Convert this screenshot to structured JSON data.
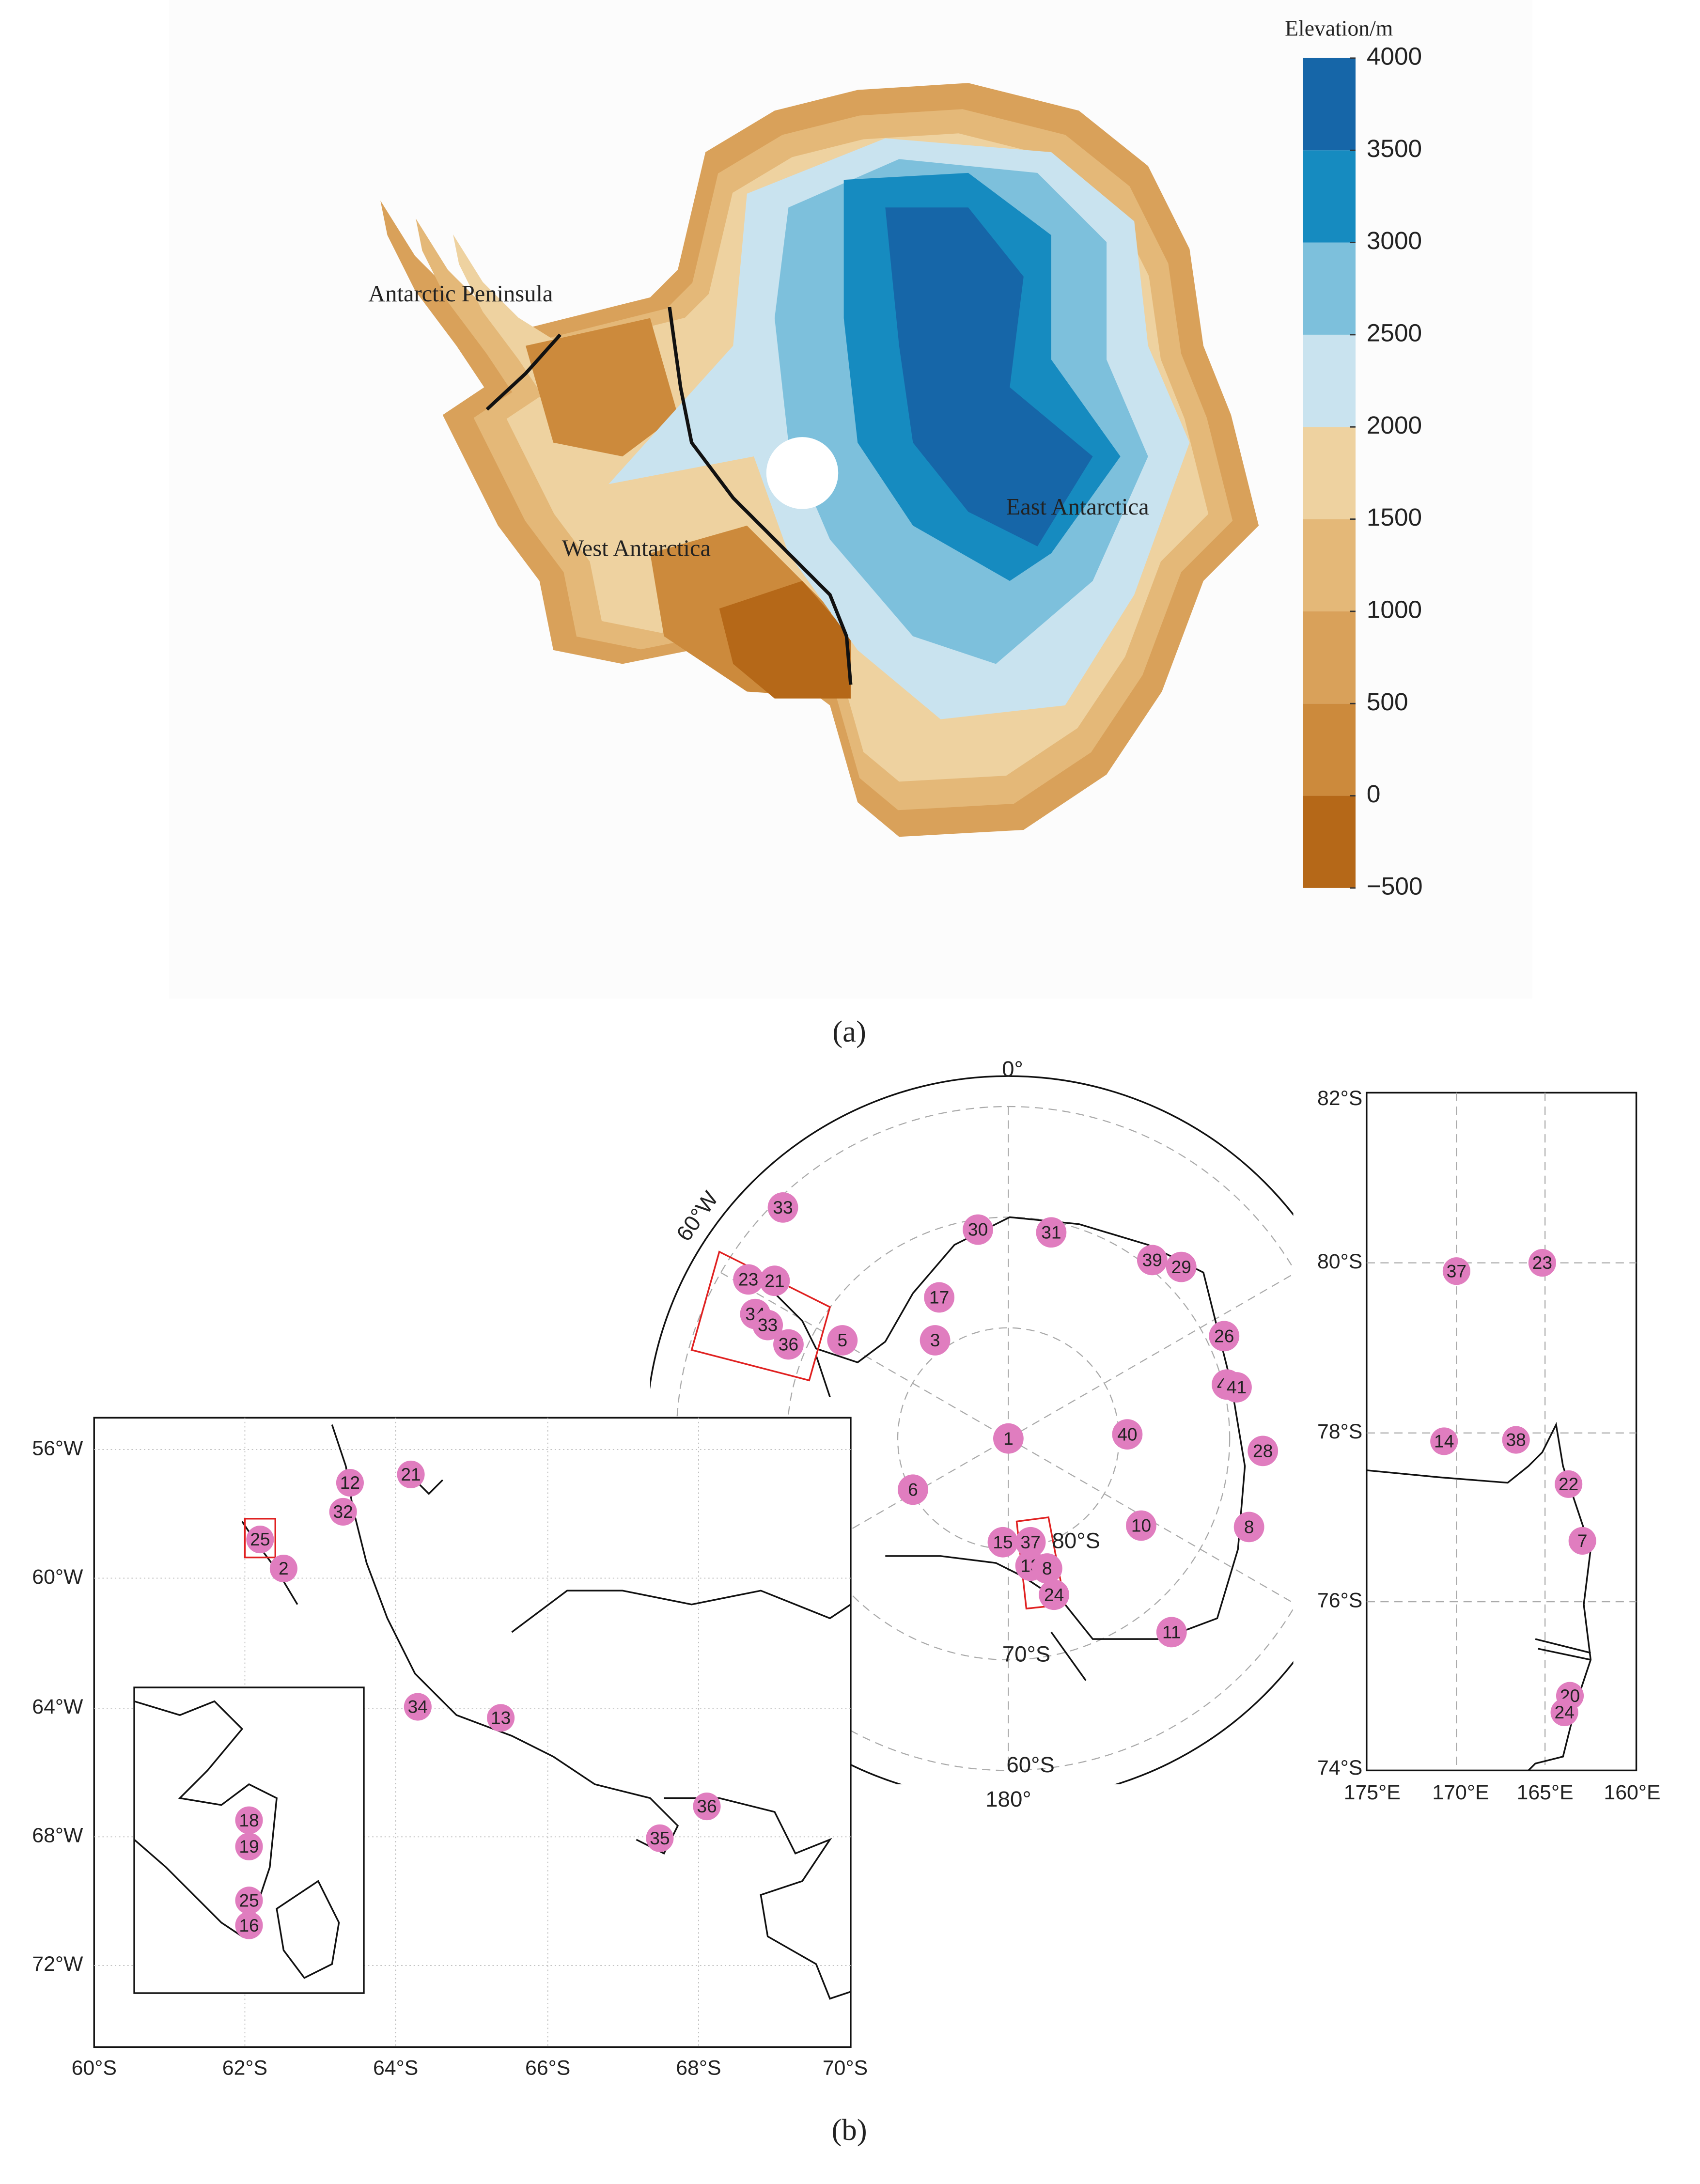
{
  "panel_a": {
    "caption": "(a)",
    "colorbar": {
      "title": "Elevation/m",
      "ticks": [
        {
          "value": -500,
          "label": "−500"
        },
        0,
        500,
        1000,
        1500,
        2000,
        2500,
        3000,
        3500,
        4000
      ],
      "colors": [
        "#b56818",
        "#cc8a3c",
        "#d9a15a",
        "#e4b878",
        "#eed2a0",
        "#c9e3ef",
        "#7dc0dc",
        "#168bc0",
        "#1666a8"
      ]
    },
    "labels": [
      "Antarctic Peninsula",
      "West Antarctica",
      "East Antarctica"
    ]
  },
  "panel_b": {
    "caption": "(b)",
    "marker_color": "#e07dbf",
    "polar_map": {
      "labels": [
        "0°",
        "60°W",
        "180°",
        "80°S",
        "70°S",
        "60°S"
      ],
      "stations": [
        "33",
        "30",
        "31",
        "39",
        "29",
        "23",
        "21",
        "17",
        "34",
        "33",
        "36",
        "3",
        "5",
        "26",
        "41",
        "41",
        "1",
        "40",
        "28",
        "6",
        "10",
        "8",
        "15",
        "37",
        "13",
        "8",
        "24",
        "11"
      ]
    },
    "peninsula_map": {
      "y_labels": [
        "56°W",
        "60°W",
        "64°W",
        "68°W",
        "72°W"
      ],
      "x_labels": [
        "60°S",
        "62°S",
        "64°S",
        "66°S",
        "68°S",
        "70°S"
      ],
      "stations": [
        "12",
        "21",
        "32",
        "25",
        "2",
        "34",
        "13",
        "36",
        "35"
      ],
      "inset_stations": [
        "18",
        "19",
        "25",
        "16"
      ]
    },
    "ross_map": {
      "y_labels": [
        "82°S",
        "80°S",
        "78°S",
        "76°S",
        "74°S"
      ],
      "x_labels": [
        "175°E",
        "170°E",
        "165°E",
        "160°E"
      ],
      "stations": [
        "37",
        "23",
        "14",
        "38",
        "22",
        "7",
        "20",
        "24"
      ]
    }
  }
}
